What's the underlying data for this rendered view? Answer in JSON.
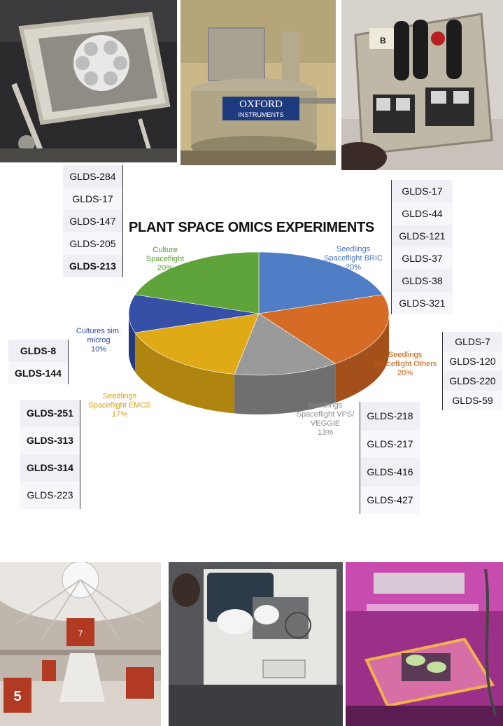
{
  "photos": {
    "top": [
      "clinostat-photo",
      "oxford-instruments-magnet-photo",
      "bric-hardware-photo"
    ],
    "bottom": [
      "large-diameter-centrifuge-photo",
      "emcs-iss-photo",
      "veggie-plants-photo"
    ],
    "oxford_logo_text": [
      "OXFORD",
      "INSTRUMENTS"
    ]
  },
  "chart_data": {
    "type": "pie",
    "title": "PLANT SPACE OMICS EXPERIMENTS",
    "slices": [
      {
        "label": "Seedlings Spaceflight BRIC",
        "value": 20,
        "pct": "20%",
        "color": "#4f7ec6",
        "side": "#3a5f99",
        "text_color": "#4472c4",
        "lines": [
          "Seedlings",
          "Spaceflight BRIC",
          "20%"
        ]
      },
      {
        "label": "Seedlings Spaceflight Others",
        "value": 20,
        "pct": "20%",
        "color": "#d56b25",
        "side": "#a4501b",
        "text_color": "#c55a11",
        "lines": [
          "Seedlings",
          "Spaceflight Others",
          "20%"
        ]
      },
      {
        "label": "Seedlings Spaceflight VPS/ VEGGIE",
        "value": 13,
        "pct": "13%",
        "color": "#9a9a9a",
        "side": "#6f6f6f",
        "text_color": "#8c8c8c",
        "lines": [
          "Seedlings",
          "Spaceflight VPS/",
          "VEGGIE",
          "13%"
        ]
      },
      {
        "label": "Seedlings Spaceflight EMCS",
        "value": 17,
        "pct": "17%",
        "color": "#e0aa16",
        "side": "#b0850f",
        "text_color": "#d4a017",
        "lines": [
          "Seedlings",
          "Spaceflight EMCS",
          "17%"
        ]
      },
      {
        "label": "Cultures sim. microg",
        "value": 10,
        "pct": "10%",
        "color": "#3650a8",
        "side": "#253a7d",
        "text_color": "#2f4ba2",
        "lines": [
          "Cultures sim.",
          "microg",
          "10%"
        ]
      },
      {
        "label": "Culture Spaceflight",
        "value": 20,
        "pct": "20%",
        "color": "#5fa43a",
        "side": "#467c2a",
        "text_color": "#5b9b35",
        "lines": [
          "Culture",
          "Spaceflight",
          "20%"
        ]
      }
    ]
  },
  "groups": {
    "culture_spaceflight": {
      "ids": [
        "GLDS-284",
        "GLDS-17",
        "GLDS-147",
        "GLDS-205",
        "GLDS-213"
      ],
      "bold": [
        false,
        false,
        false,
        false,
        true
      ]
    },
    "seedlings_bric": {
      "ids": [
        "GLDS-17",
        "GLDS-44",
        "GLDS-121",
        "GLDS-37",
        "GLDS-38",
        "GLDS-321"
      ],
      "bold": [
        false,
        false,
        false,
        false,
        false,
        false
      ]
    },
    "seedlings_others": {
      "ids": [
        "GLDS-7",
        "GLDS-120",
        "GLDS-220",
        "GLDS-59"
      ],
      "bold": [
        false,
        false,
        false,
        false
      ]
    },
    "seedlings_veggie": {
      "ids": [
        "GLDS-218",
        "GLDS-217",
        "GLDS-416",
        "GLDS-427"
      ],
      "bold": [
        false,
        false,
        false,
        false
      ]
    },
    "seedlings_emcs": {
      "ids": [
        "GLDS-251",
        "GLDS-313",
        "GLDS-314",
        "GLDS-223"
      ],
      "bold": [
        true,
        true,
        true,
        false
      ]
    },
    "cultures_microg": {
      "ids": [
        "GLDS-8",
        "GLDS-144"
      ],
      "bold": [
        true,
        true
      ]
    }
  },
  "labels": {
    "s0": [
      "Seedlings",
      "Spaceflight BRIC",
      "20%"
    ],
    "s1": [
      "Seedlings",
      "Spaceflight Others",
      "20%"
    ],
    "s2": [
      "Seedlings",
      "Spaceflight VPS/",
      "VEGGIE",
      "13%"
    ],
    "s3": [
      "Seedlings",
      "Spaceflight EMCS",
      "17%"
    ],
    "s4": [
      "Cultures sim.",
      "microg",
      "10%"
    ],
    "s5": [
      "Culture",
      "Spaceflight",
      "20%"
    ]
  }
}
